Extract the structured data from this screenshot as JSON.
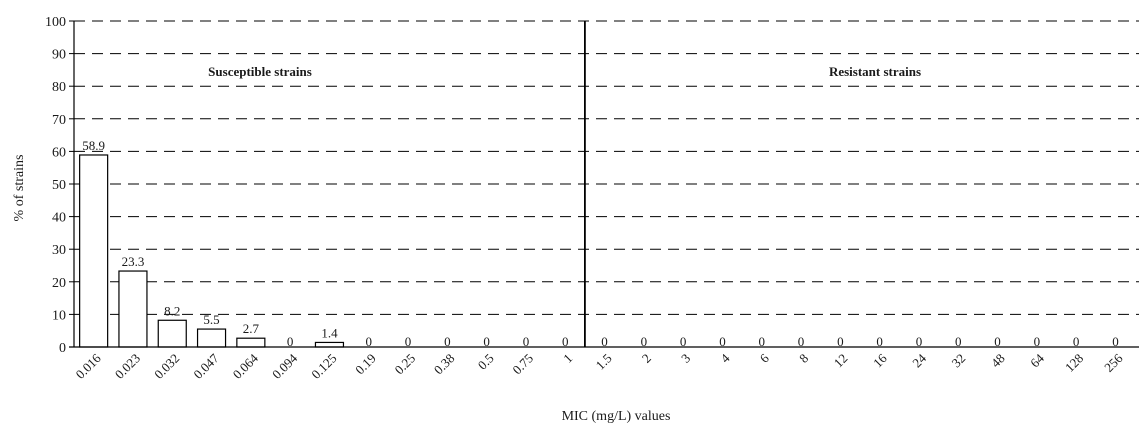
{
  "chart_data": {
    "type": "bar",
    "xlabel": "MIC (mg/L) values",
    "ylabel": "% of strains",
    "ylim": [
      0,
      100
    ],
    "yticks": [
      0,
      10,
      20,
      30,
      40,
      50,
      60,
      70,
      80,
      90,
      100
    ],
    "grid": "horizontal dashed",
    "categories": [
      "0.016",
      "0.023",
      "0.032",
      "0.047",
      "0.064",
      "0.094",
      "0.125",
      "0.19",
      "0.25",
      "0.38",
      "0.5",
      "0.75",
      "1",
      "1.5",
      "2",
      "3",
      "4",
      "6",
      "8",
      "12",
      "16",
      "24",
      "32",
      "48",
      "64",
      "128",
      "256"
    ],
    "values": [
      58.9,
      23.3,
      8.2,
      5.5,
      2.7,
      0,
      1.4,
      0,
      0,
      0,
      0,
      0,
      0,
      0,
      0,
      0,
      0,
      0,
      0,
      0,
      0,
      0,
      0,
      0,
      0,
      0,
      0
    ],
    "data_labels": [
      "58.9",
      "23.3",
      "8.2",
      "5.5",
      "2.7",
      "0",
      "1.4",
      "0",
      "0",
      "0",
      "0",
      "0",
      "0",
      "0",
      "0",
      "0",
      "0",
      "0",
      "0",
      "0",
      "0",
      "0",
      "0",
      "0",
      "0",
      "0",
      "0"
    ],
    "bar_fill": "#ffffff",
    "bar_stroke": "#000000",
    "breakpoint_after": "1",
    "regions": [
      {
        "label": "Susceptible strains"
      },
      {
        "label": "Resistant strains"
      }
    ]
  }
}
